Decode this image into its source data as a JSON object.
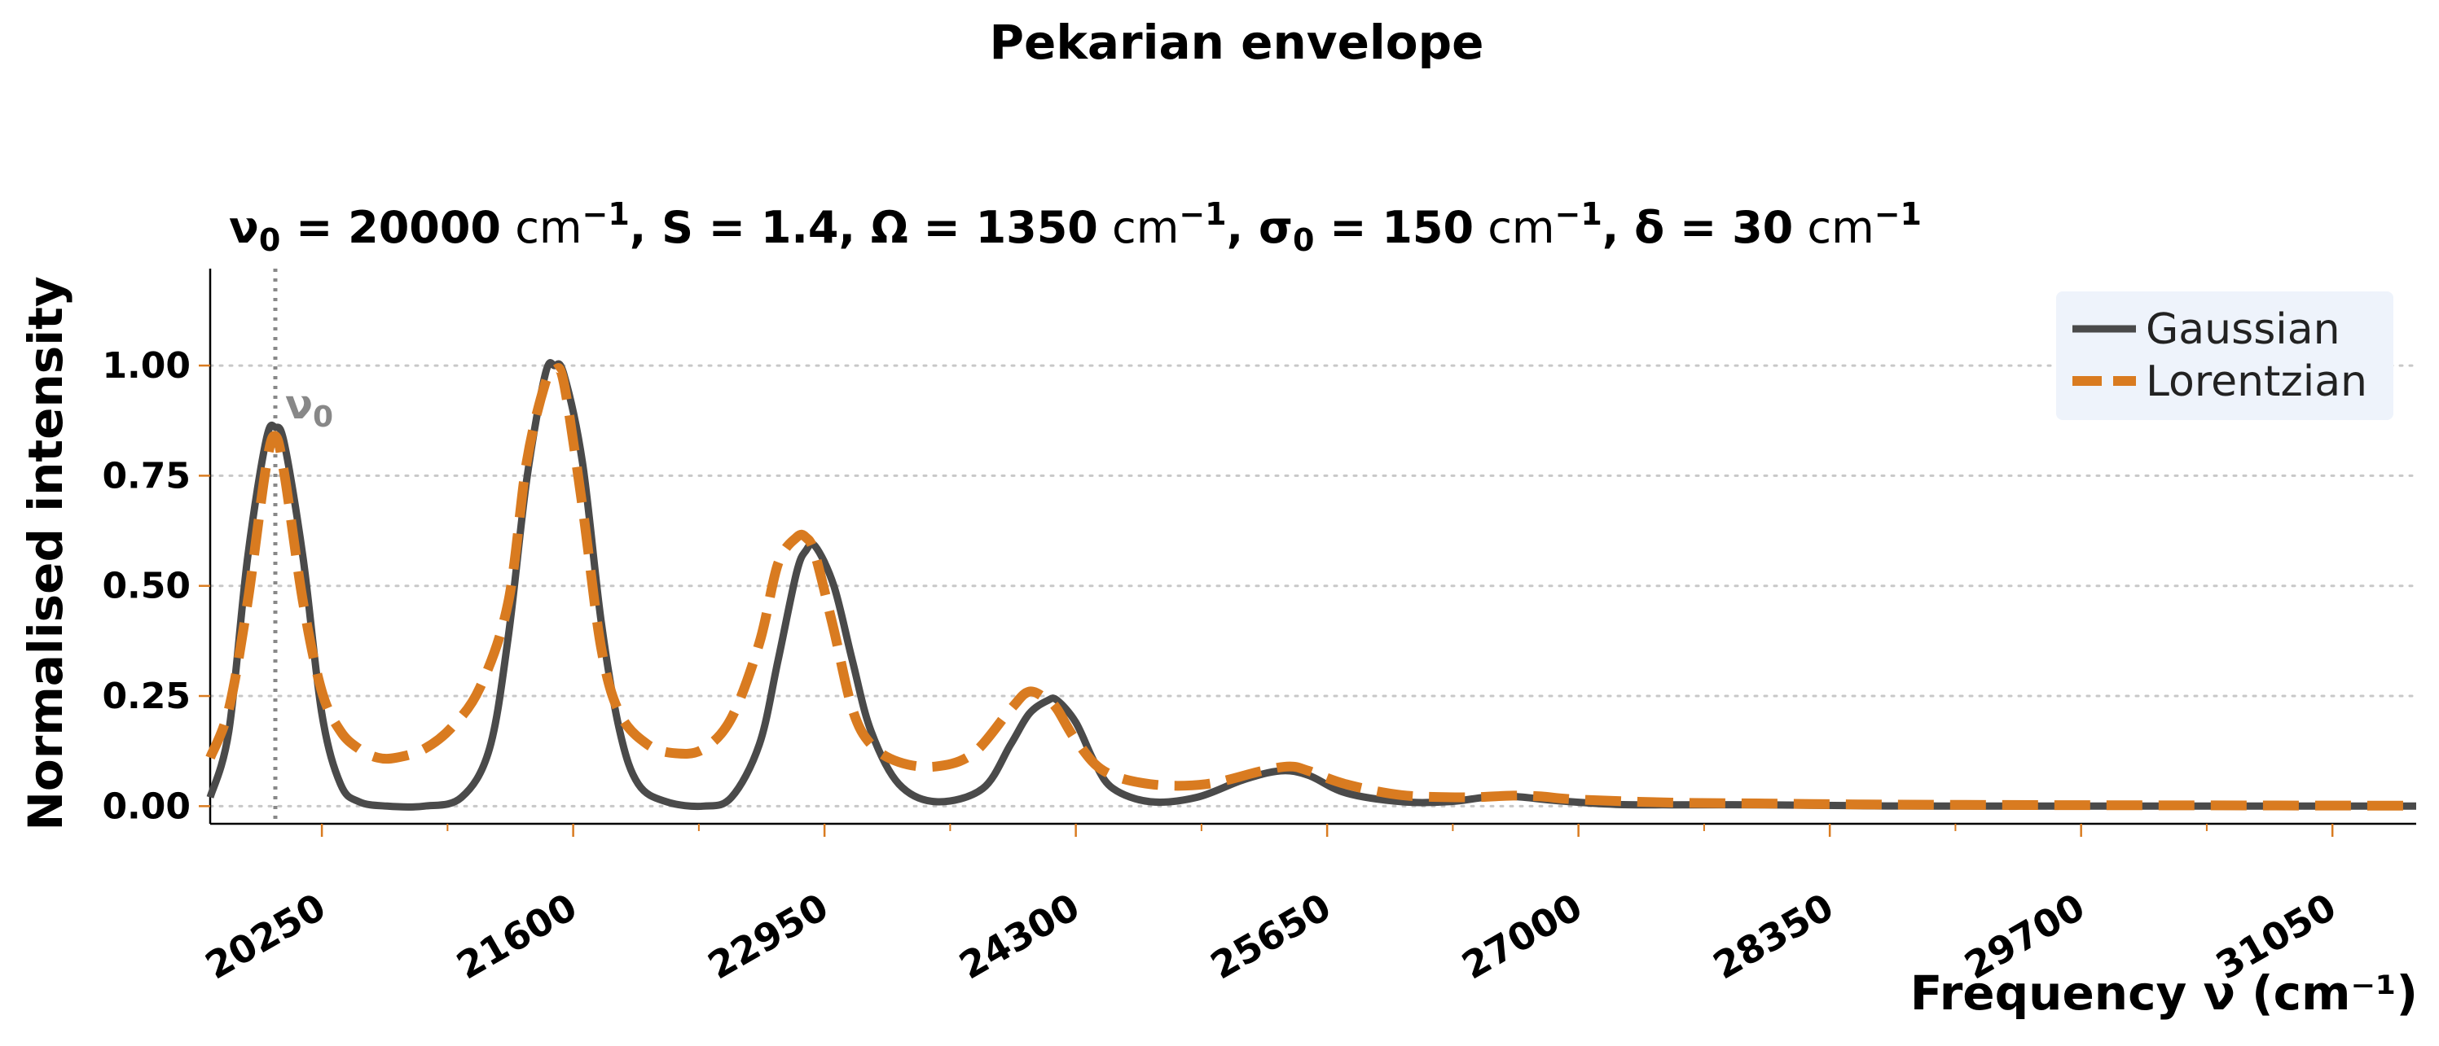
{
  "chart_data": {
    "type": "line",
    "title": "Pekarian envelope",
    "subtitle": {
      "nu0": "20000",
      "S": "1.4",
      "Omega": "1350",
      "sigma0": "150",
      "delta": "30",
      "unit": "cm"
    },
    "xlabel": "Frequency ν (cm⁻¹)",
    "ylabel": "Normalised intensity",
    "xlim": [
      19650,
      31500
    ],
    "ylim": [
      -0.04,
      1.22
    ],
    "x_ticks": [
      "20250",
      "21600",
      "22950",
      "24300",
      "25650",
      "27000",
      "28350",
      "29700",
      "31050"
    ],
    "y_ticks": [
      "0.00",
      "0.25",
      "0.50",
      "0.75",
      "1.00"
    ],
    "grid": "horizontal dotted",
    "legend_position": "top-right",
    "annotation": {
      "text": "ν",
      "sub": "0",
      "x": 20000
    },
    "params": {
      "nu0": 20000,
      "S": 1.4,
      "Omega": 1350,
      "sigma0": 150,
      "delta": 30
    },
    "series": [
      {
        "name": "Gaussian",
        "style": "solid",
        "color": "#4a4a4a",
        "x": [
          19650,
          19750,
          19850,
          19950,
          20000,
          20050,
          20150,
          20250,
          20350,
          20450,
          20600,
          20800,
          21000,
          21150,
          21250,
          21350,
          21450,
          21500,
          21550,
          21650,
          21750,
          21850,
          21950,
          22100,
          22300,
          22450,
          22600,
          22700,
          22800,
          22850,
          22900,
          23000,
          23100,
          23200,
          23350,
          23550,
          23800,
          23950,
          24050,
          24150,
          24200,
          24300,
          24400,
          24500,
          24700,
          24950,
          25200,
          25400,
          25550,
          25750,
          26050,
          26300,
          26500,
          26650,
          26900,
          27200,
          27500,
          28000,
          28500,
          29000,
          30000,
          31500
        ],
        "values": [
          0.02,
          0.17,
          0.56,
          0.83,
          0.86,
          0.82,
          0.56,
          0.21,
          0.05,
          0.01,
          0.0,
          0.0,
          0.02,
          0.13,
          0.38,
          0.74,
          0.98,
          1.0,
          0.98,
          0.78,
          0.42,
          0.17,
          0.05,
          0.01,
          0.0,
          0.02,
          0.14,
          0.33,
          0.53,
          0.58,
          0.59,
          0.5,
          0.33,
          0.17,
          0.05,
          0.01,
          0.04,
          0.14,
          0.21,
          0.24,
          0.24,
          0.19,
          0.1,
          0.04,
          0.01,
          0.02,
          0.06,
          0.08,
          0.07,
          0.03,
          0.01,
          0.01,
          0.02,
          0.022,
          0.012,
          0.004,
          0.003,
          0.003,
          0.001,
          0.0,
          0.0,
          0.0
        ]
      },
      {
        "name": "Lorentzian",
        "style": "dashed",
        "color": "#d97b20",
        "x": [
          19650,
          19750,
          19850,
          19950,
          20000,
          20050,
          20150,
          20250,
          20350,
          20450,
          20550,
          20650,
          20800,
          20950,
          21100,
          21250,
          21350,
          21450,
          21500,
          21550,
          21650,
          21750,
          21850,
          22000,
          22150,
          22300,
          22450,
          22600,
          22700,
          22800,
          22850,
          22900,
          23000,
          23100,
          23200,
          23350,
          23550,
          23750,
          23950,
          24050,
          24150,
          24200,
          24300,
          24450,
          24700,
          25000,
          25300,
          25450,
          25550,
          25750,
          26050,
          26400,
          26650,
          26800,
          27000,
          27500,
          28000,
          28500,
          29000,
          30000,
          31500
        ],
        "values": [
          0.11,
          0.22,
          0.46,
          0.77,
          0.84,
          0.75,
          0.46,
          0.26,
          0.17,
          0.13,
          0.11,
          0.11,
          0.13,
          0.18,
          0.27,
          0.46,
          0.78,
          0.96,
          0.99,
          0.96,
          0.68,
          0.36,
          0.21,
          0.14,
          0.12,
          0.13,
          0.2,
          0.37,
          0.55,
          0.61,
          0.61,
          0.57,
          0.4,
          0.22,
          0.14,
          0.1,
          0.09,
          0.12,
          0.22,
          0.26,
          0.24,
          0.22,
          0.15,
          0.08,
          0.05,
          0.05,
          0.08,
          0.09,
          0.08,
          0.05,
          0.025,
          0.02,
          0.024,
          0.022,
          0.015,
          0.008,
          0.006,
          0.004,
          0.003,
          0.002,
          0.001
        ]
      }
    ]
  },
  "colors": {
    "axis_tick": "#d97b20",
    "grid": "#c8c8c8",
    "marker_line": "#888888",
    "legend_bg": "#eef3fb"
  }
}
